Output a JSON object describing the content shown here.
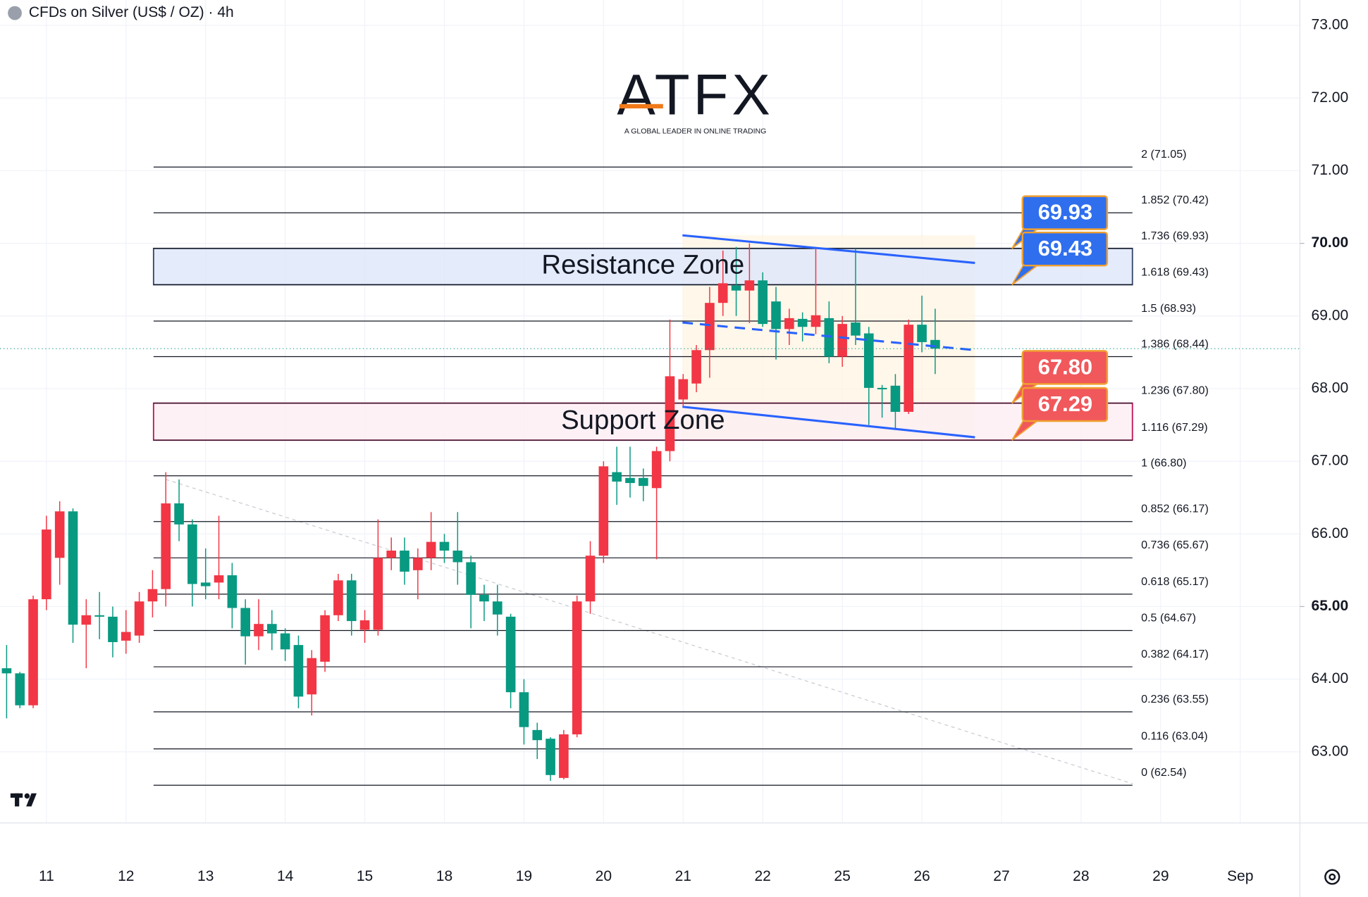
{
  "chart_data": {
    "type": "candlestick",
    "title": "CFDs on Silver (US$ / OZ) · 4h",
    "logo": {
      "name": "ATFX",
      "tagline": "A GLOBAL LEADER IN ONLINE TRADING"
    },
    "categories": [
      null,
      null,
      null,
      "11",
      null,
      null,
      null,
      null,
      null,
      "12",
      null,
      null,
      null,
      null,
      null,
      "13",
      null,
      null,
      null,
      null,
      null,
      "14",
      null,
      null,
      null,
      null,
      null,
      "15",
      null,
      null,
      null,
      null,
      null,
      "18",
      null,
      null,
      null,
      null,
      null,
      "19",
      null,
      null,
      null,
      null,
      null,
      "20",
      null,
      null,
      null,
      null,
      null,
      "21",
      null,
      null,
      null,
      null,
      null,
      "22",
      null,
      null,
      null,
      null,
      null,
      "25",
      null,
      null,
      null,
      null,
      null,
      "26",
      null,
      null,
      null,
      null,
      null,
      "27",
      null,
      null,
      null,
      null,
      null,
      "28",
      null,
      null,
      null,
      null,
      null,
      "29",
      null,
      null,
      null,
      null,
      null,
      "Sep",
      null,
      null,
      null,
      null
    ],
    "open": [
      64.15,
      64.08,
      63.64,
      65.1,
      65.67,
      66.31,
      64.75,
      64.88,
      64.86,
      64.53,
      64.6,
      65.07,
      65.24,
      66.42,
      66.13,
      65.33,
      65.33,
      65.43,
      64.98,
      64.59,
      64.76,
      64.63,
      64.47,
      63.79,
      64.24,
      64.88,
      65.36,
      64.68,
      64.68,
      65.67,
      65.77,
      65.5,
      65.67,
      65.89,
      65.77,
      65.61,
      65.16,
      65.07,
      64.86,
      63.82,
      63.3,
      63.18,
      62.64,
      63.24,
      65.07,
      65.7,
      66.85,
      66.77,
      66.77,
      66.63,
      67.14,
      67.85,
      68.07,
      68.53,
      69.18,
      69.42,
      69.35,
      69.49,
      69.2,
      68.82,
      68.96,
      68.85,
      68.97,
      68.44,
      68.91,
      68.76,
      68.01,
      68.04,
      67.68,
      68.88,
      68.67,
      null,
      null,
      null,
      null,
      null,
      null,
      null,
      null,
      null,
      null,
      null,
      null,
      null,
      null,
      null,
      null,
      null,
      null,
      null,
      null,
      null,
      null,
      null,
      null,
      null,
      null,
      null
    ],
    "high": [
      64.47,
      64.1,
      65.15,
      66.25,
      66.45,
      66.35,
      65.1,
      65.2,
      65.0,
      64.95,
      65.2,
      65.5,
      66.85,
      66.75,
      66.2,
      65.8,
      66.25,
      65.6,
      65.1,
      65.1,
      64.95,
      64.7,
      64.6,
      64.4,
      64.95,
      65.45,
      65.45,
      64.95,
      66.2,
      65.95,
      65.95,
      65.8,
      66.3,
      66.0,
      66.3,
      65.7,
      65.3,
      65.3,
      64.9,
      64.0,
      63.4,
      63.2,
      63.3,
      65.15,
      65.9,
      67.0,
      67.2,
      67.2,
      66.9,
      67.2,
      68.95,
      68.2,
      68.6,
      69.4,
      69.9,
      69.95,
      70.0,
      69.6,
      69.4,
      69.1,
      69.05,
      69.92,
      69.2,
      69.0,
      69.93,
      68.85,
      68.05,
      68.2,
      68.95,
      69.28,
      69.1,
      null,
      null,
      null,
      null,
      null,
      null,
      null,
      null,
      null,
      null,
      null,
      null,
      null,
      null,
      null,
      null,
      null,
      null,
      null,
      null,
      null,
      null,
      null,
      null,
      null,
      null,
      null
    ],
    "low": [
      63.46,
      63.6,
      63.6,
      64.95,
      65.3,
      64.5,
      64.15,
      64.55,
      64.3,
      64.35,
      64.5,
      64.85,
      65.0,
      65.9,
      65.0,
      65.1,
      65.1,
      64.7,
      64.2,
      64.4,
      64.4,
      64.25,
      63.6,
      63.5,
      64.1,
      64.8,
      64.6,
      64.5,
      64.6,
      65.5,
      65.3,
      65.1,
      65.5,
      65.6,
      65.3,
      64.7,
      64.8,
      64.6,
      63.6,
      63.1,
      62.9,
      62.6,
      62.62,
      63.2,
      64.9,
      65.6,
      66.4,
      66.5,
      66.45,
      65.65,
      67.0,
      67.75,
      67.95,
      68.15,
      69.0,
      69.0,
      68.9,
      68.85,
      68.4,
      68.6,
      68.65,
      68.75,
      68.35,
      68.3,
      68.6,
      67.5,
      67.6,
      67.45,
      67.65,
      68.5,
      68.2,
      null,
      null,
      null,
      null,
      null,
      null,
      null,
      null,
      null,
      null,
      null,
      null,
      null,
      null,
      null,
      null,
      null,
      null,
      null,
      null,
      null,
      null,
      null,
      null,
      null,
      null,
      null
    ],
    "close": [
      64.08,
      63.64,
      65.1,
      66.06,
      66.31,
      64.75,
      64.88,
      64.86,
      64.51,
      64.65,
      65.07,
      65.24,
      66.42,
      66.13,
      65.31,
      65.28,
      65.43,
      64.98,
      64.59,
      64.76,
      64.63,
      64.41,
      63.76,
      64.29,
      64.88,
      65.36,
      64.8,
      64.81,
      65.67,
      65.77,
      65.48,
      65.67,
      65.89,
      65.77,
      65.61,
      65.16,
      65.07,
      64.89,
      63.82,
      63.34,
      63.16,
      62.68,
      63.24,
      65.07,
      65.7,
      66.93,
      66.72,
      66.7,
      66.66,
      67.14,
      68.17,
      68.13,
      68.53,
      69.18,
      69.45,
      69.35,
      69.49,
      68.89,
      68.82,
      68.97,
      68.85,
      69.01,
      68.44,
      68.89,
      68.73,
      68.01,
      67.99,
      67.68,
      68.88,
      68.64,
      68.55,
      null,
      null,
      null,
      null,
      null,
      null,
      null,
      null,
      null,
      null,
      null,
      null,
      null,
      null,
      null,
      null,
      null,
      null,
      null,
      null,
      null,
      null,
      null,
      null,
      null,
      null,
      null
    ],
    "up_color": "#f23645",
    "down_color": "#089981",
    "ylim": [
      62.02,
      73.35
    ],
    "yticks": [
      {
        "value": 63,
        "label": "63.00"
      },
      {
        "value": 64,
        "label": "64.00"
      },
      {
        "value": 65,
        "label": "65.00"
      },
      {
        "value": 66,
        "label": "66.00"
      },
      {
        "value": 67,
        "label": "67.00"
      },
      {
        "value": 68,
        "label": "68.00"
      },
      {
        "value": 69,
        "label": "69.00"
      },
      {
        "value": 70,
        "label": "70.00"
      },
      {
        "value": 71,
        "label": "71.00"
      },
      {
        "value": 72,
        "label": "72.00"
      },
      {
        "value": 73,
        "label": "73.00"
      }
    ],
    "bold_yticks": [
      65,
      70
    ],
    "grid": true,
    "fib_levels": [
      {
        "value": 71.05,
        "label": "2 (71.05)"
      },
      {
        "value": 70.42,
        "label": "1.852 (70.42)"
      },
      {
        "value": 69.93,
        "label": "1.736 (69.93)"
      },
      {
        "value": 69.43,
        "label": "1.618 (69.43)"
      },
      {
        "value": 68.93,
        "label": "1.5 (68.93)"
      },
      {
        "value": 68.44,
        "label": "1.386 (68.44)"
      },
      {
        "value": 67.8,
        "label": "1.236 (67.80)"
      },
      {
        "value": 67.29,
        "label": "1.116 (67.29)"
      },
      {
        "value": 66.8,
        "label": "1 (66.80)"
      },
      {
        "value": 66.17,
        "label": "0.852 (66.17)"
      },
      {
        "value": 65.67,
        "label": "0.736 (65.67)"
      },
      {
        "value": 65.17,
        "label": "0.618 (65.17)"
      },
      {
        "value": 64.67,
        "label": "0.5 (64.67)"
      },
      {
        "value": 64.17,
        "label": "0.382 (64.17)"
      },
      {
        "value": 63.55,
        "label": "0.236 (63.55)"
      },
      {
        "value": 63.04,
        "label": "0.116 (63.04)"
      },
      {
        "value": 62.54,
        "label": "0 (62.54)"
      }
    ],
    "zones": [
      {
        "name": "Resistance Zone",
        "low": 69.43,
        "high": 69.93,
        "fill": "#dde6fa",
        "stroke": "#3a4a6a",
        "text_color": "#2962ff"
      },
      {
        "name": "Support Zone",
        "low": 67.29,
        "high": 67.8,
        "fill": "#fdeef2",
        "stroke": "#c2185b",
        "text_color": "#9c27b0"
      }
    ],
    "price_tags": [
      {
        "value": 69.93,
        "label": "69.93",
        "color": "#2f6fee"
      },
      {
        "value": 69.43,
        "label": "69.43",
        "color": "#2f6fee"
      },
      {
        "value": 67.8,
        "label": "67.80",
        "color": "#f0585c"
      },
      {
        "value": 67.29,
        "label": "67.29",
        "color": "#f0585c"
      }
    ],
    "channel": {
      "x": [
        50.95,
        73
      ],
      "upper": [
        70.11,
        69.73
      ],
      "middle": [
        68.91,
        68.53
      ],
      "lower": [
        67.75,
        67.33
      ],
      "color": "#2962ff"
    },
    "trendline": {
      "x": [
        12,
        84.9
      ],
      "y": [
        66.75,
        62.56
      ]
    }
  }
}
